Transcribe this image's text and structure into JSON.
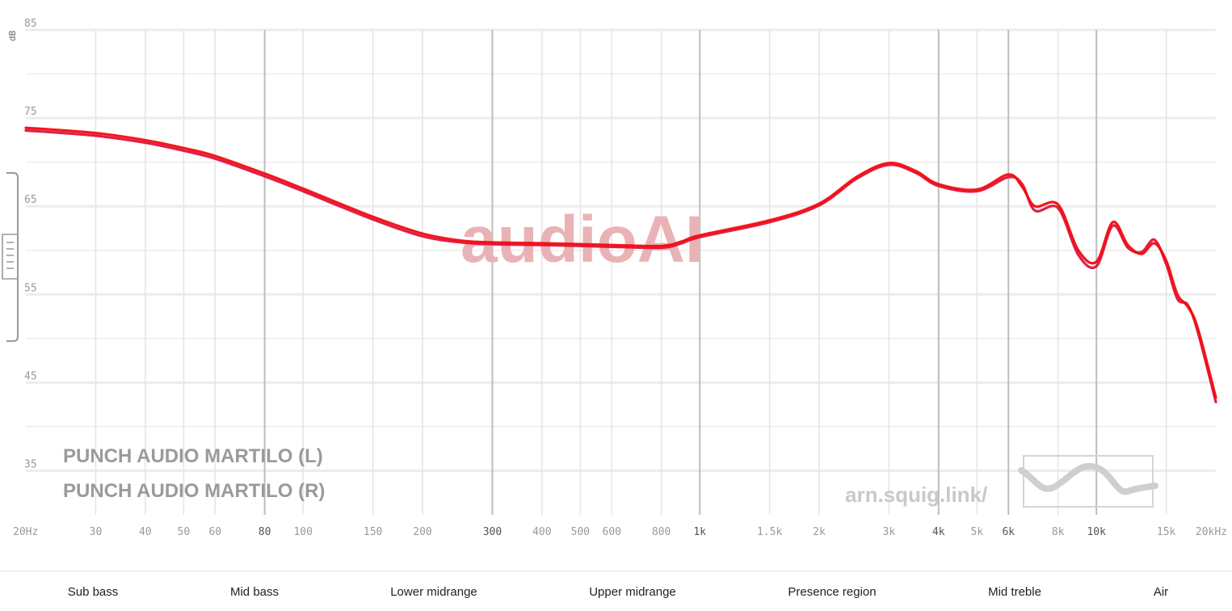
{
  "chart_data": {
    "type": "line",
    "title": "",
    "xlabel": "",
    "ylabel": "dB",
    "x_scale": "log",
    "xlim": [
      20,
      20000
    ],
    "ylim": [
      30,
      85
    ],
    "y_ticks": [
      "35",
      "45",
      "55",
      "65",
      "75",
      "85"
    ],
    "x_ticks": [
      {
        "value": 20,
        "label": "20Hz",
        "major": false
      },
      {
        "value": 30,
        "label": "30",
        "major": false
      },
      {
        "value": 40,
        "label": "40",
        "major": false
      },
      {
        "value": 50,
        "label": "50",
        "major": false
      },
      {
        "value": 60,
        "label": "60",
        "major": false
      },
      {
        "value": 80,
        "label": "80",
        "major": true
      },
      {
        "value": 100,
        "label": "100",
        "major": false
      },
      {
        "value": 150,
        "label": "150",
        "major": false
      },
      {
        "value": 200,
        "label": "200",
        "major": false
      },
      {
        "value": 300,
        "label": "300",
        "major": true
      },
      {
        "value": 400,
        "label": "400",
        "major": false
      },
      {
        "value": 500,
        "label": "500",
        "major": false
      },
      {
        "value": 600,
        "label": "600",
        "major": false
      },
      {
        "value": 800,
        "label": "800",
        "major": false
      },
      {
        "value": 1000,
        "label": "1k",
        "major": true
      },
      {
        "value": 1500,
        "label": "1.5k",
        "major": false
      },
      {
        "value": 2000,
        "label": "2k",
        "major": false
      },
      {
        "value": 3000,
        "label": "3k",
        "major": false
      },
      {
        "value": 4000,
        "label": "4k",
        "major": true
      },
      {
        "value": 5000,
        "label": "5k",
        "major": false
      },
      {
        "value": 6000,
        "label": "6k",
        "major": true
      },
      {
        "value": 8000,
        "label": "8k",
        "major": false
      },
      {
        "value": 10000,
        "label": "10k",
        "major": true
      },
      {
        "value": 15000,
        "label": "15k",
        "major": false
      },
      {
        "value": 20000,
        "label": "20kHz",
        "major": false
      }
    ],
    "grid": true,
    "legend_position": "bottom-left",
    "series": [
      {
        "name": "PUNCH AUDIO MARTILO (L)",
        "color": "#e0123f",
        "x": [
          20,
          30,
          40,
          50,
          60,
          80,
          100,
          150,
          200,
          250,
          300,
          400,
          500,
          600,
          800,
          900,
          1000,
          1500,
          2000,
          2500,
          3000,
          3500,
          4000,
          5000,
          6000,
          6500,
          7000,
          8000,
          9000,
          10000,
          11000,
          12000,
          13000,
          14000,
          15000,
          16000,
          17000,
          18000,
          20000
        ],
        "y": [
          73.6,
          73.0,
          72.2,
          71.3,
          70.4,
          68.4,
          66.7,
          63.5,
          61.6,
          60.9,
          60.7,
          60.6,
          60.5,
          60.4,
          60.3,
          60.8,
          61.5,
          63.2,
          65.1,
          68.2,
          69.7,
          68.8,
          67.3,
          66.7,
          68.3,
          67.5,
          64.5,
          64.8,
          59.5,
          58.2,
          62.8,
          60.3,
          59.8,
          61.2,
          58.4,
          54.5,
          53.8,
          50.8,
          42.8
        ]
      },
      {
        "name": "PUNCH AUDIO MARTILO (R)",
        "color": "#f20d0d",
        "x": [
          20,
          30,
          40,
          50,
          60,
          80,
          100,
          150,
          200,
          250,
          300,
          400,
          500,
          600,
          800,
          900,
          1000,
          1500,
          2000,
          2500,
          3000,
          3500,
          4000,
          5000,
          6000,
          6500,
          7000,
          8000,
          9000,
          10000,
          11000,
          12000,
          13000,
          14000,
          15000,
          16000,
          17000,
          18000,
          20000
        ],
        "y": [
          73.9,
          73.3,
          72.5,
          71.6,
          70.7,
          68.7,
          67.0,
          63.8,
          61.9,
          61.1,
          60.9,
          60.8,
          60.7,
          60.6,
          60.5,
          61.0,
          61.7,
          63.4,
          65.3,
          68.4,
          69.9,
          69.0,
          67.5,
          66.9,
          68.6,
          67.2,
          65.0,
          65.2,
          60.0,
          58.7,
          63.2,
          60.6,
          59.6,
          60.8,
          58.8,
          55.0,
          53.6,
          51.2,
          43.3
        ]
      }
    ],
    "bands": [
      "Sub bass",
      "Mid bass",
      "Lower midrange",
      "Upper midrange",
      "Presence region",
      "Mid treble",
      "Air"
    ]
  },
  "watermark": {
    "main": "audioAI",
    "url": "arn.squig.link/"
  },
  "colors": {
    "grid_minor": "#ececec",
    "grid_major": "#bdbdbd",
    "watermark": "#e9b3b6"
  }
}
